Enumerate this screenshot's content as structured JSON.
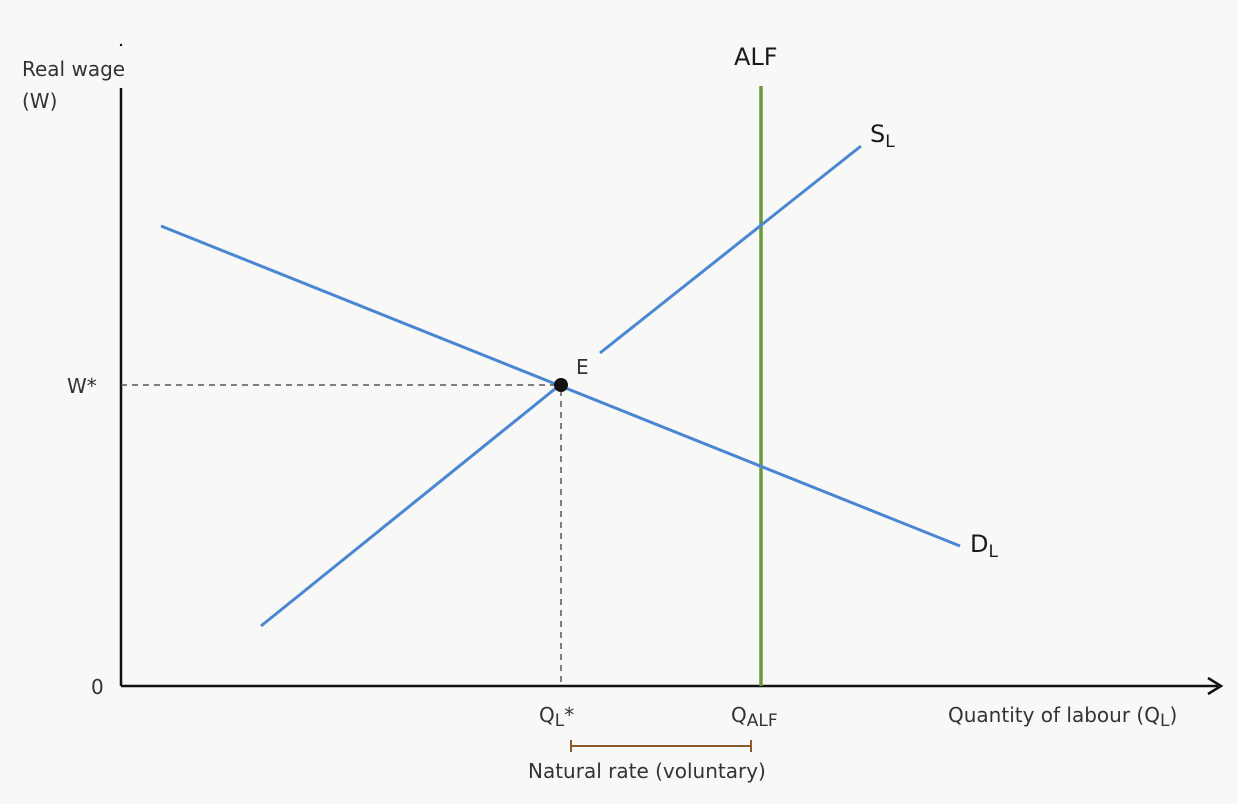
{
  "diagram": {
    "y_axis_label_line1": "Real wage",
    "y_axis_label_line2": "(W)",
    "x_axis_label_main": "Quantity of labour (Q",
    "x_axis_label_sub": "L",
    "x_axis_label_close": ")",
    "origin_label": "0",
    "w_star_label": "W*",
    "q_star_main": "Q",
    "q_star_sub": "L",
    "q_star_suffix": "*",
    "q_alf_main": "Q",
    "q_alf_sub": "ALF",
    "alf_label": "ALF",
    "supply_main": "S",
    "supply_sub": "L",
    "demand_main": "D",
    "demand_sub": "L",
    "equilibrium_label": "E",
    "natural_rate_label": "Natural rate (voluntary)",
    "colors": {
      "curves": "#4a86d4",
      "alf": "#6a9a3a",
      "axis": "#111111",
      "guides": "#555555",
      "bracket": "#8b5a2b",
      "point": "#111111"
    }
  }
}
